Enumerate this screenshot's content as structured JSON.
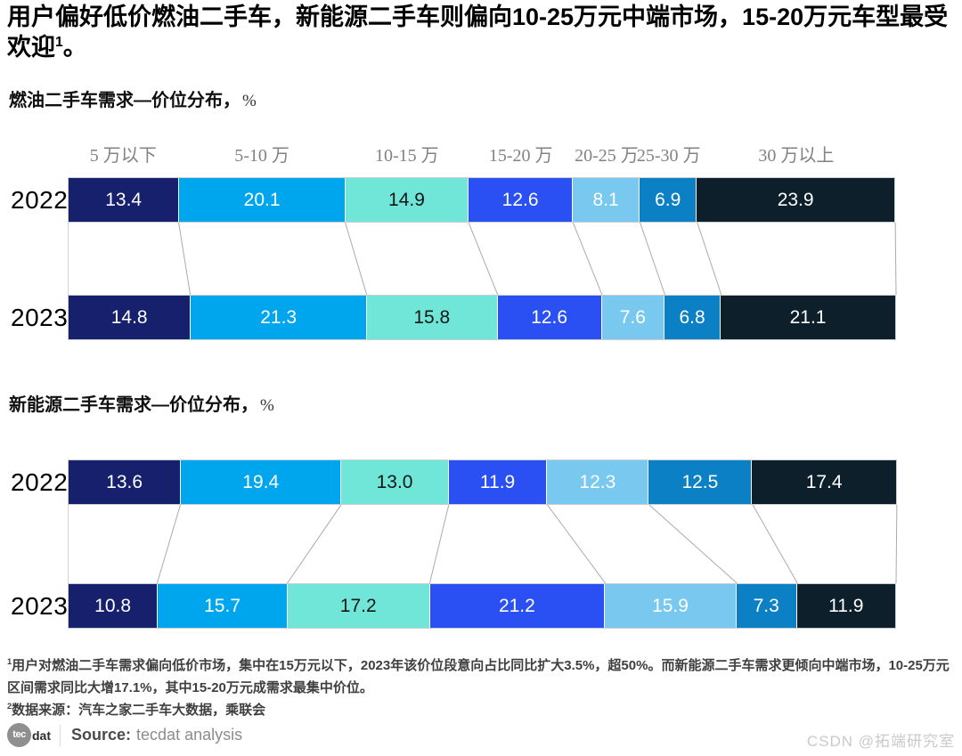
{
  "header": {
    "text": "用户偏好低价燃油二手车，新能源二手车则偏向10-25万元中端市场，15-20万元车型最受欢迎",
    "sup": "1",
    "period": "。"
  },
  "price_band_headers": [
    "5 万以下",
    "5-10 万",
    "10-15 万",
    "15-20 万",
    "20-25 万",
    "25-30 万",
    "30 万以上"
  ],
  "band_colors": [
    "#16206d",
    "#00a6ed",
    "#70e6d9",
    "#2a4ff2",
    "#78c8f0",
    "#0c80c5",
    "#0d1f2b"
  ],
  "band_text_colors": [
    "#ffffff",
    "#ffffff",
    "#161616",
    "#ffffff",
    "#ffffff",
    "#ffffff",
    "#ffffff"
  ],
  "chart_data": [
    {
      "type": "bar",
      "subtype": "stacked-horizontal-100pct",
      "title": "燃油二手车需求—价位分布，",
      "unit": "%",
      "categories": [
        "5万以下",
        "5-10万",
        "10-15万",
        "15-20万",
        "20-25万",
        "25-30万",
        "30万以上"
      ],
      "series": [
        {
          "name": "2022",
          "values": [
            13.4,
            20.1,
            14.9,
            12.6,
            8.1,
            6.9,
            23.9
          ]
        },
        {
          "name": "2023",
          "values": [
            14.8,
            21.3,
            15.8,
            12.6,
            7.6,
            6.8,
            21.1
          ]
        }
      ],
      "legend_position": "top-category-headers",
      "grid": false,
      "xlim": [
        0,
        100
      ]
    },
    {
      "type": "bar",
      "subtype": "stacked-horizontal-100pct",
      "title": "新能源二手车需求—价位分布，",
      "unit": "%",
      "categories": [
        "5万以下",
        "5-10万",
        "10-15万",
        "15-20万",
        "20-25万",
        "25-30万",
        "30万以上"
      ],
      "series": [
        {
          "name": "2022",
          "values": [
            13.6,
            19.4,
            13.0,
            11.9,
            12.3,
            12.5,
            17.4
          ]
        },
        {
          "name": "2023",
          "values": [
            10.8,
            15.7,
            17.2,
            21.2,
            15.9,
            7.3,
            11.9
          ]
        }
      ],
      "legend_position": "none",
      "grid": false,
      "xlim": [
        0,
        100
      ]
    }
  ],
  "footnotes": [
    {
      "sup": "1",
      "text": "用户对燃油二手车需求偏向低价市场，集中在15万元以下，2023年该价位段意向占比同比扩大3.5%，超50%。而新能源二手车需求更倾向中端市场，10-25万元区间需求同比大增17.1%，其中15-20万元成需求最集中价位。"
    },
    {
      "sup": "2",
      "text": "数据来源：汽车之家二手车大数据，乘联会"
    }
  ],
  "footer": {
    "logo_circle": "tec",
    "logo_rest": "dat",
    "source_label": "Source:",
    "source_value": "tecdat analysis"
  },
  "watermark": "CSDN @拓端研究室"
}
